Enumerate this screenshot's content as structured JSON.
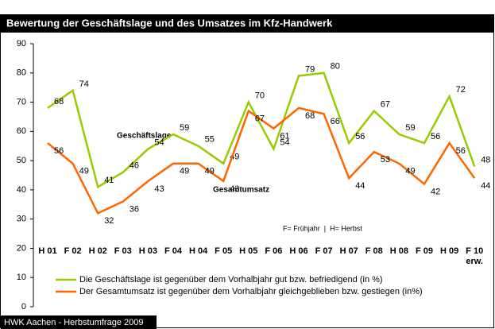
{
  "chart_data": {
    "type": "line",
    "title": "Bewertung der Geschäftslage und des Umsatzes im Kfz-Handwerk",
    "categories": [
      "H 01",
      "F 02",
      "H 02",
      "F 03",
      "H 03",
      "F 04",
      "H 04",
      "F 05",
      "H 05",
      "F 06",
      "H 06",
      "F 07",
      "H 07",
      "F 08",
      "H 08",
      "F 09",
      "H 09",
      "F 10 erw."
    ],
    "series": [
      {
        "name": "Die Geschäftslage ist gegenüber dem Vorhalbjahr gut bzw. befriedigend (in %)",
        "color": "#99cc00",
        "values": [
          68,
          74,
          41,
          46,
          54,
          59,
          55,
          49,
          70,
          54,
          79,
          80,
          56,
          67,
          59,
          56,
          72,
          48
        ]
      },
      {
        "name": "Der Gesamtumsatz ist gegenüber dem Vorhalbjahr gleichgeblieben bzw. gestiegen (in%)",
        "color": "#ff6600",
        "values": [
          56,
          49,
          32,
          36,
          43,
          49,
          49,
          43,
          67,
          61,
          68,
          66,
          44,
          53,
          49,
          42,
          56,
          44
        ]
      }
    ],
    "ylim": [
      0,
      90
    ],
    "yticks": [
      0,
      10,
      20,
      30,
      40,
      50,
      60,
      70,
      80,
      90
    ],
    "annotations": [
      "Geschäftslage",
      "Gesamtumsatz",
      "F= Frühjahr  |  H= Herbst"
    ],
    "source": "HWK Aachen - Herbstumfrage 2009"
  }
}
